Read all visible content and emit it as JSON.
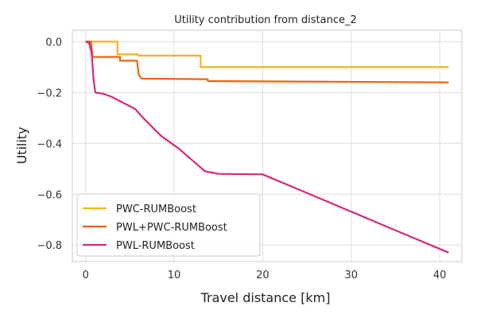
{
  "chart_data": {
    "type": "line",
    "title": "Utility contribution from distance_2",
    "xlabel": "Travel distance [km]",
    "ylabel": "Utility",
    "xlim": [
      -1.5,
      42.5
    ],
    "ylim": [
      -0.865,
      0.045
    ],
    "x_ticks": [
      0,
      10,
      20,
      30,
      40
    ],
    "x_tick_labels": [
      "0",
      "10",
      "20",
      "30",
      "40"
    ],
    "y_ticks": [
      0.0,
      -0.2,
      -0.4,
      -0.6,
      -0.8
    ],
    "y_tick_labels": [
      "0.0",
      "−0.2",
      "−0.4",
      "−0.6",
      "−0.8"
    ],
    "grid": true,
    "legend_position": "bottom-left",
    "series": [
      {
        "name": "PWC-RUMBoost",
        "color": "#f5b21a",
        "points": [
          [
            0,
            0
          ],
          [
            3.6,
            0
          ],
          [
            3.6,
            -0.05
          ],
          [
            5.9,
            -0.05
          ],
          [
            5.9,
            -0.055
          ],
          [
            13,
            -0.055
          ],
          [
            13,
            -0.1
          ],
          [
            41,
            -0.1
          ]
        ]
      },
      {
        "name": "PWL+PWC-RUMBoost",
        "color": "#f0620e",
        "points": [
          [
            0,
            0
          ],
          [
            0.6,
            0
          ],
          [
            0.8,
            -0.06
          ],
          [
            3.9,
            -0.06
          ],
          [
            3.9,
            -0.075
          ],
          [
            5.8,
            -0.075
          ],
          [
            6.0,
            -0.13
          ],
          [
            6.3,
            -0.145
          ],
          [
            13.8,
            -0.148
          ],
          [
            13.8,
            -0.155
          ],
          [
            41,
            -0.16
          ]
        ]
      },
      {
        "name": "PWL-RUMBoost",
        "color": "#d42a7c",
        "points": [
          [
            0,
            0
          ],
          [
            0.4,
            -0.005
          ],
          [
            0.7,
            -0.05
          ],
          [
            0.9,
            -0.15
          ],
          [
            1.1,
            -0.2
          ],
          [
            2,
            -0.205
          ],
          [
            3,
            -0.218
          ],
          [
            5.6,
            -0.265
          ],
          [
            6.5,
            -0.3
          ],
          [
            8.5,
            -0.37
          ],
          [
            10.5,
            -0.42
          ],
          [
            13.5,
            -0.51
          ],
          [
            15,
            -0.52
          ],
          [
            20,
            -0.522
          ],
          [
            41,
            -0.83
          ]
        ]
      }
    ]
  }
}
